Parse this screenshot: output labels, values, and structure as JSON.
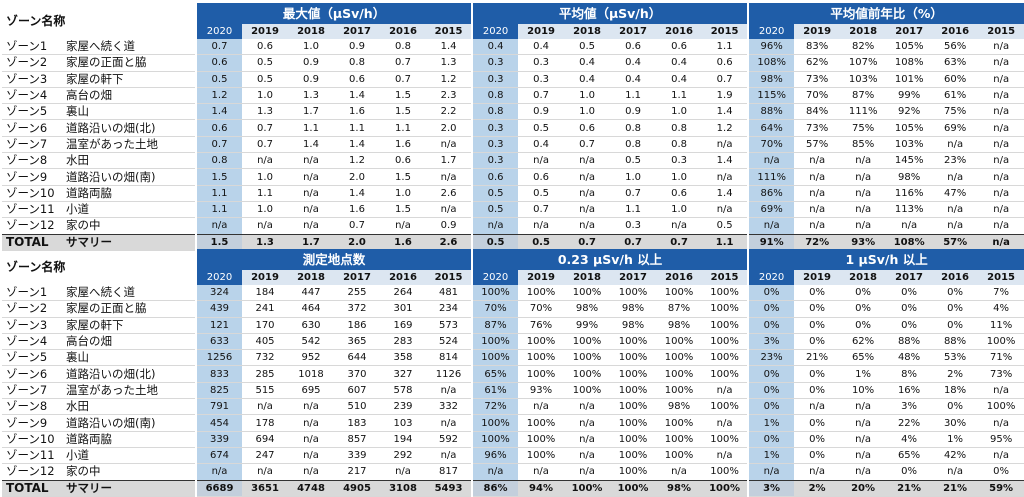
{
  "tables": [
    {
      "corner": "ゾーン名称",
      "groups": [
        "最大値（μSv/h）",
        "平均値（μSv/h）",
        "平均値前年比（%）"
      ],
      "years": [
        "2020",
        "2019",
        "2018",
        "2017",
        "2016",
        "2015"
      ],
      "rows": [
        {
          "zone": "ゾーン1",
          "place": "家屋へ続く道",
          "values": [
            "0.7",
            "0.6",
            "1.0",
            "0.9",
            "0.8",
            "1.4",
            "0.4",
            "0.4",
            "0.5",
            "0.6",
            "0.6",
            "1.1",
            "96%",
            "83%",
            "82%",
            "105%",
            "56%",
            "n/a"
          ]
        },
        {
          "zone": "ゾーン2",
          "place": "家屋の正面と脇",
          "values": [
            "0.6",
            "0.5",
            "0.9",
            "0.8",
            "0.7",
            "1.3",
            "0.3",
            "0.3",
            "0.4",
            "0.4",
            "0.4",
            "0.6",
            "108%",
            "62%",
            "107%",
            "108%",
            "63%",
            "n/a"
          ]
        },
        {
          "zone": "ゾーン3",
          "place": "家屋の軒下",
          "values": [
            "0.5",
            "0.5",
            "0.9",
            "0.6",
            "0.7",
            "1.2",
            "0.3",
            "0.3",
            "0.4",
            "0.4",
            "0.4",
            "0.7",
            "98%",
            "73%",
            "103%",
            "101%",
            "60%",
            "n/a"
          ]
        },
        {
          "zone": "ゾーン4",
          "place": "高台の畑",
          "values": [
            "1.2",
            "1.0",
            "1.3",
            "1.4",
            "1.5",
            "2.3",
            "0.8",
            "0.7",
            "1.0",
            "1.1",
            "1.1",
            "1.9",
            "115%",
            "70%",
            "87%",
            "99%",
            "61%",
            "n/a"
          ]
        },
        {
          "zone": "ゾーン5",
          "place": "裏山",
          "values": [
            "1.4",
            "1.3",
            "1.7",
            "1.6",
            "1.5",
            "2.2",
            "0.8",
            "0.9",
            "1.0",
            "0.9",
            "1.0",
            "1.4",
            "88%",
            "84%",
            "111%",
            "92%",
            "75%",
            "n/a"
          ]
        },
        {
          "zone": "ゾーン6",
          "place": "道路沿いの畑(北)",
          "values": [
            "0.6",
            "0.7",
            "1.1",
            "1.1",
            "1.1",
            "2.0",
            "0.3",
            "0.5",
            "0.6",
            "0.8",
            "0.8",
            "1.2",
            "64%",
            "73%",
            "75%",
            "105%",
            "69%",
            "n/a"
          ]
        },
        {
          "zone": "ゾーン7",
          "place": "温室があった土地",
          "values": [
            "0.7",
            "0.7",
            "1.4",
            "1.4",
            "1.6",
            "n/a",
            "0.3",
            "0.4",
            "0.7",
            "0.8",
            "0.8",
            "n/a",
            "70%",
            "57%",
            "85%",
            "103%",
            "n/a",
            "n/a"
          ]
        },
        {
          "zone": "ゾーン8",
          "place": "水田",
          "values": [
            "0.8",
            "n/a",
            "n/a",
            "1.2",
            "0.6",
            "1.7",
            "0.3",
            "n/a",
            "n/a",
            "0.5",
            "0.3",
            "1.4",
            "n/a",
            "n/a",
            "n/a",
            "145%",
            "23%",
            "n/a"
          ]
        },
        {
          "zone": "ゾーン9",
          "place": "道路沿いの畑(南)",
          "values": [
            "1.5",
            "1.0",
            "n/a",
            "2.0",
            "1.5",
            "n/a",
            "0.6",
            "0.6",
            "n/a",
            "1.0",
            "1.0",
            "n/a",
            "111%",
            "n/a",
            "n/a",
            "98%",
            "n/a",
            "n/a"
          ]
        },
        {
          "zone": "ゾーン10",
          "place": "道路両脇",
          "values": [
            "1.1",
            "1.1",
            "n/a",
            "1.4",
            "1.0",
            "2.6",
            "0.5",
            "0.5",
            "n/a",
            "0.7",
            "0.6",
            "1.4",
            "86%",
            "n/a",
            "n/a",
            "116%",
            "47%",
            "n/a"
          ]
        },
        {
          "zone": "ゾーン11",
          "place": "小道",
          "values": [
            "1.1",
            "1.0",
            "n/a",
            "1.6",
            "1.5",
            "n/a",
            "0.5",
            "0.7",
            "n/a",
            "1.1",
            "1.0",
            "n/a",
            "69%",
            "n/a",
            "n/a",
            "113%",
            "n/a",
            "n/a"
          ]
        },
        {
          "zone": "ゾーン12",
          "place": "家の中",
          "values": [
            "n/a",
            "n/a",
            "n/a",
            "0.7",
            "n/a",
            "0.9",
            "n/a",
            "n/a",
            "n/a",
            "0.3",
            "n/a",
            "0.5",
            "n/a",
            "n/a",
            "n/a",
            "n/a",
            "n/a",
            "n/a"
          ]
        }
      ],
      "total": {
        "zone": "TOTAL",
        "place": "サマリー",
        "values": [
          "1.5",
          "1.3",
          "1.7",
          "2.0",
          "1.6",
          "2.6",
          "0.5",
          "0.5",
          "0.7",
          "0.7",
          "0.7",
          "1.1",
          "91%",
          "72%",
          "93%",
          "108%",
          "57%",
          "n/a"
        ]
      }
    },
    {
      "corner": "ゾーン名称",
      "groups": [
        "測定地点数",
        "0.23 μSv/h 以上",
        "1 μSv/h 以上"
      ],
      "years": [
        "2020",
        "2019",
        "2018",
        "2017",
        "2016",
        "2015"
      ],
      "rows": [
        {
          "zone": "ゾーン1",
          "place": "家屋へ続く道",
          "values": [
            "324",
            "184",
            "447",
            "255",
            "264",
            "481",
            "100%",
            "100%",
            "100%",
            "100%",
            "100%",
            "100%",
            "0%",
            "0%",
            "0%",
            "0%",
            "0%",
            "7%"
          ]
        },
        {
          "zone": "ゾーン2",
          "place": "家屋の正面と脇",
          "values": [
            "439",
            "241",
            "464",
            "372",
            "301",
            "234",
            "70%",
            "70%",
            "98%",
            "98%",
            "87%",
            "100%",
            "0%",
            "0%",
            "0%",
            "0%",
            "0%",
            "4%"
          ]
        },
        {
          "zone": "ゾーン3",
          "place": "家屋の軒下",
          "values": [
            "121",
            "170",
            "630",
            "186",
            "169",
            "573",
            "87%",
            "76%",
            "99%",
            "98%",
            "98%",
            "100%",
            "0%",
            "0%",
            "0%",
            "0%",
            "0%",
            "11%"
          ]
        },
        {
          "zone": "ゾーン4",
          "place": "高台の畑",
          "values": [
            "633",
            "405",
            "542",
            "365",
            "283",
            "524",
            "100%",
            "100%",
            "100%",
            "100%",
            "100%",
            "100%",
            "3%",
            "0%",
            "62%",
            "88%",
            "88%",
            "100%"
          ]
        },
        {
          "zone": "ゾーン5",
          "place": "裏山",
          "values": [
            "1256",
            "732",
            "952",
            "644",
            "358",
            "814",
            "100%",
            "100%",
            "100%",
            "100%",
            "100%",
            "100%",
            "23%",
            "21%",
            "65%",
            "48%",
            "53%",
            "71%"
          ]
        },
        {
          "zone": "ゾーン6",
          "place": "道路沿いの畑(北)",
          "values": [
            "833",
            "285",
            "1018",
            "370",
            "327",
            "1126",
            "65%",
            "100%",
            "100%",
            "100%",
            "100%",
            "100%",
            "0%",
            "0%",
            "1%",
            "8%",
            "2%",
            "73%"
          ]
        },
        {
          "zone": "ゾーン7",
          "place": "温室があった土地",
          "values": [
            "825",
            "515",
            "695",
            "607",
            "578",
            "n/a",
            "61%",
            "93%",
            "100%",
            "100%",
            "100%",
            "n/a",
            "0%",
            "0%",
            "10%",
            "16%",
            "18%",
            "n/a"
          ]
        },
        {
          "zone": "ゾーン8",
          "place": "水田",
          "values": [
            "791",
            "n/a",
            "n/a",
            "510",
            "239",
            "332",
            "72%",
            "n/a",
            "n/a",
            "100%",
            "98%",
            "100%",
            "0%",
            "n/a",
            "n/a",
            "3%",
            "0%",
            "100%"
          ]
        },
        {
          "zone": "ゾーン9",
          "place": "道路沿いの畑(南)",
          "values": [
            "454",
            "178",
            "n/a",
            "183",
            "103",
            "n/a",
            "100%",
            "100%",
            "n/a",
            "100%",
            "100%",
            "n/a",
            "1%",
            "0%",
            "n/a",
            "22%",
            "30%",
            "n/a"
          ]
        },
        {
          "zone": "ゾーン10",
          "place": "道路両脇",
          "values": [
            "339",
            "694",
            "n/a",
            "857",
            "194",
            "592",
            "100%",
            "100%",
            "n/a",
            "100%",
            "100%",
            "100%",
            "0%",
            "0%",
            "n/a",
            "4%",
            "1%",
            "95%"
          ]
        },
        {
          "zone": "ゾーン11",
          "place": "小道",
          "values": [
            "674",
            "247",
            "n/a",
            "339",
            "292",
            "n/a",
            "96%",
            "100%",
            "n/a",
            "100%",
            "100%",
            "n/a",
            "1%",
            "0%",
            "n/a",
            "65%",
            "42%",
            "n/a"
          ]
        },
        {
          "zone": "ゾーン12",
          "place": "家の中",
          "values": [
            "n/a",
            "n/a",
            "n/a",
            "217",
            "n/a",
            "817",
            "n/a",
            "n/a",
            "n/a",
            "100%",
            "n/a",
            "100%",
            "n/a",
            "n/a",
            "n/a",
            "0%",
            "n/a",
            "0%"
          ]
        }
      ],
      "total": {
        "zone": "TOTAL",
        "place": "サマリー",
        "values": [
          "6689",
          "3651",
          "4748",
          "4905",
          "3108",
          "5493",
          "86%",
          "94%",
          "100%",
          "100%",
          "98%",
          "100%",
          "3%",
          "2%",
          "20%",
          "21%",
          "21%",
          "59%"
        ]
      }
    }
  ],
  "colors": {
    "header_blue": "#1f5da8",
    "year_light": "#dce6f1",
    "current_column": "#b9d3ea",
    "total_gray": "#d9d9d9"
  }
}
